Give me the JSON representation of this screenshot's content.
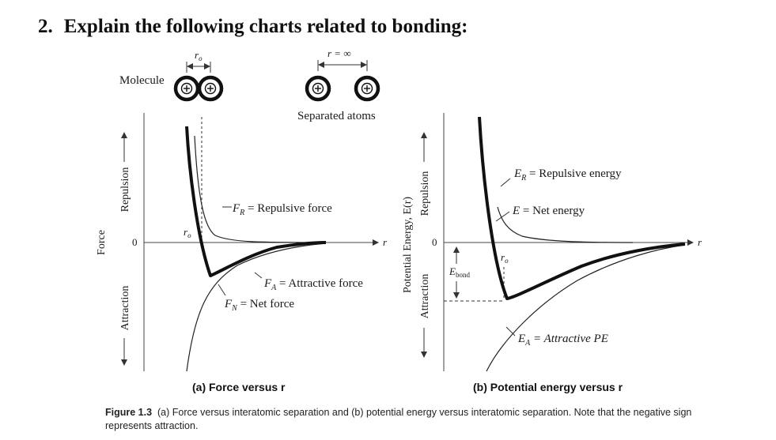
{
  "question": {
    "number": "2.",
    "text": "Explain the following charts related to bonding:"
  },
  "top_illustration": {
    "molecule_label": "Molecule",
    "r0_label": "r",
    "r0_sub": "o",
    "r_inf_label": "r = ∞",
    "separated_label": "Separated atoms",
    "nucleus_symbol": "+"
  },
  "chart_a": {
    "caption": "(a) Force versus r",
    "y_axis_title": "Force",
    "y_up_label": "Repulsion",
    "y_down_label": "Attraction",
    "zero_label": "0",
    "x_label": "r",
    "r0_label": "r",
    "r0_sub": "o",
    "curve_labels": {
      "repulsive": {
        "sym": "F",
        "sub": "R",
        "rest": " = Repulsive force"
      },
      "attractive": {
        "sym": "F",
        "sub": "A",
        "rest": " = Attractive force"
      },
      "net": {
        "sym": "F",
        "sub": "N",
        "rest": " = Net force"
      }
    }
  },
  "chart_b": {
    "caption": "(b) Potential energy versus r",
    "y_axis_title": "Potential Energy, E(r)",
    "y_up_label": "Repulsion",
    "y_down_label": "Attraction",
    "zero_label": "0",
    "x_label": "r",
    "r0_label": "r",
    "r0_sub": "o",
    "ebond_sym": "E",
    "ebond_sub": "bond",
    "curve_labels": {
      "repulsive": {
        "sym": "E",
        "sub": "R",
        "rest": " = Repulsive energy"
      },
      "net": {
        "sym": "E",
        "sub": "",
        "rest": " = Net energy"
      },
      "attractive": {
        "sym": "E",
        "sub": "A",
        "rest": " = Attractive PE"
      }
    }
  },
  "figure_caption": {
    "label": "Figure 1.3",
    "text": "(a) Force versus interatomic separation and (b) potential energy versus interatomic separation. Note that the negative sign represents attraction."
  },
  "colors": {
    "ink": "#1a1a1a",
    "curve": "#111111",
    "axis": "#444444"
  }
}
